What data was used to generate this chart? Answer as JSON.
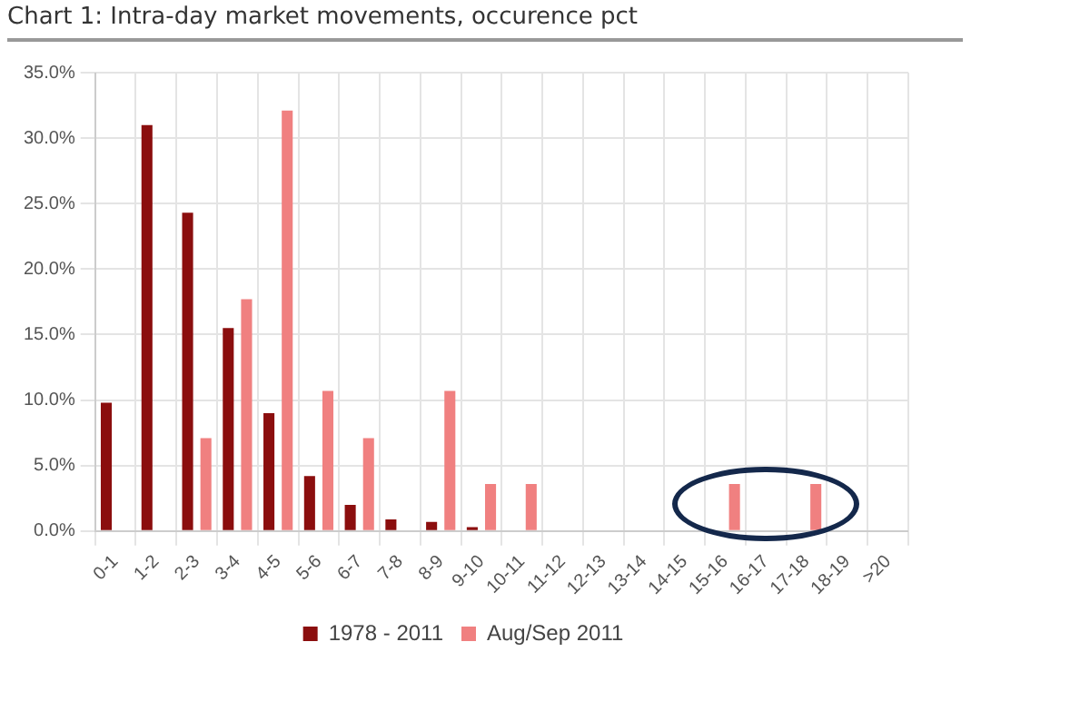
{
  "chart_data": {
    "type": "bar",
    "title": "Chart 1: Intra-day market movements, occurence pct",
    "categories": [
      "0-1",
      "1-2",
      "2-3",
      "3-4",
      "4-5",
      "5-6",
      "6-7",
      "7-8",
      "8-9",
      "9-10",
      "10-11",
      "11-12",
      "12-13",
      "13-14",
      "14-15",
      "15-16",
      "16-17",
      "17-18",
      "18-19",
      ">20"
    ],
    "series": [
      {
        "name": "1978 - 2011",
        "color": "#8b0e0e",
        "values": [
          9.8,
          31.0,
          24.3,
          15.5,
          9.0,
          4.2,
          2.0,
          0.9,
          0.7,
          0.3,
          0,
          0,
          0,
          0,
          0,
          0,
          0,
          0,
          0,
          0
        ]
      },
      {
        "name": "Aug/Sep 2011",
        "color": "#f08080",
        "values": [
          0,
          0,
          7.1,
          17.7,
          32.1,
          10.7,
          7.1,
          0,
          10.7,
          3.6,
          3.6,
          0,
          0,
          0,
          0,
          3.6,
          0,
          3.6,
          0,
          0
        ]
      }
    ],
    "ylim": [
      0,
      35
    ],
    "yticks": [
      {
        "value": 0,
        "label": "0.0%"
      },
      {
        "value": 5,
        "label": "5.0%"
      },
      {
        "value": 10,
        "label": "10.0%"
      },
      {
        "value": 15,
        "label": "15.0%"
      },
      {
        "value": 20,
        "label": "20.0%"
      },
      {
        "value": 25,
        "label": "25.0%"
      },
      {
        "value": 30,
        "label": "30.0%"
      },
      {
        "value": 35,
        "label": "35.0%"
      }
    ],
    "grid": true,
    "legend": "bottom"
  }
}
